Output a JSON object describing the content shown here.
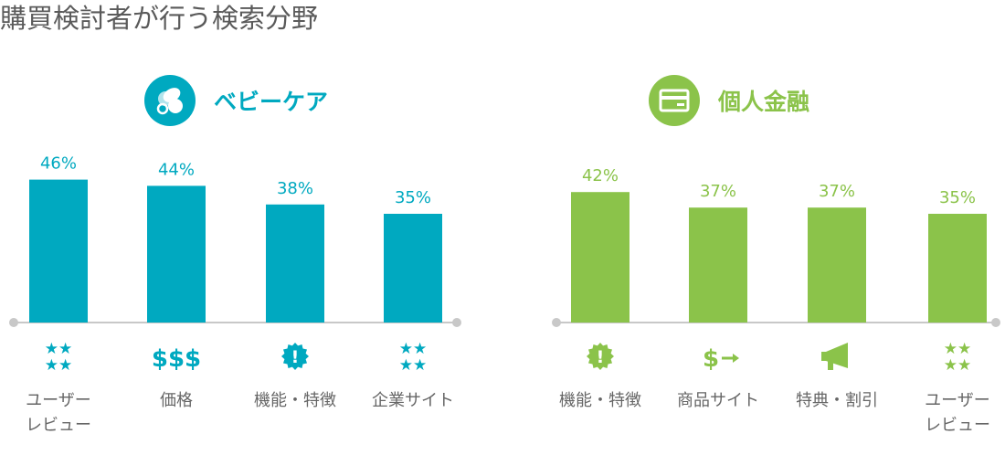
{
  "title": "購買検討者が行う検索分野",
  "colors": {
    "baby": "#00a9c0",
    "finance": "#8bc34a",
    "axis": "#c8c8c8",
    "label": "#666666"
  },
  "chart_data": [
    {
      "type": "bar",
      "title": "ベビーケア",
      "icon": "pacifier-icon",
      "color": "#00a9c0",
      "categories": [
        [
          "ユーザー",
          "レビュー"
        ],
        [
          "価格"
        ],
        [
          "機能・特徴"
        ],
        [
          "企業サイト"
        ]
      ],
      "category_icons": [
        "stars-icon",
        "dollar-signs-icon",
        "exclamation-badge-icon",
        "stars-icon"
      ],
      "category_icon_text": [
        "",
        "$$$",
        "!",
        ""
      ],
      "values": [
        46,
        44,
        38,
        35
      ],
      "value_labels": [
        "46%",
        "44%",
        "38%",
        "35%"
      ],
      "ylim": [
        0,
        50
      ]
    },
    {
      "type": "bar",
      "title": "個人金融",
      "icon": "credit-card-icon",
      "color": "#8bc34a",
      "categories": [
        [
          "機能・特徴"
        ],
        [
          "商品サイト"
        ],
        [
          "特典・割引"
        ],
        [
          "ユーザー",
          "レビュー"
        ]
      ],
      "category_icons": [
        "exclamation-badge-icon",
        "dollar-arrow-icon",
        "megaphone-icon",
        "stars-icon"
      ],
      "category_icon_text": [
        "!",
        "$",
        "",
        ""
      ],
      "values": [
        42,
        37,
        37,
        35
      ],
      "value_labels": [
        "42%",
        "37%",
        "37%",
        "35%"
      ],
      "ylim": [
        0,
        50
      ]
    }
  ]
}
